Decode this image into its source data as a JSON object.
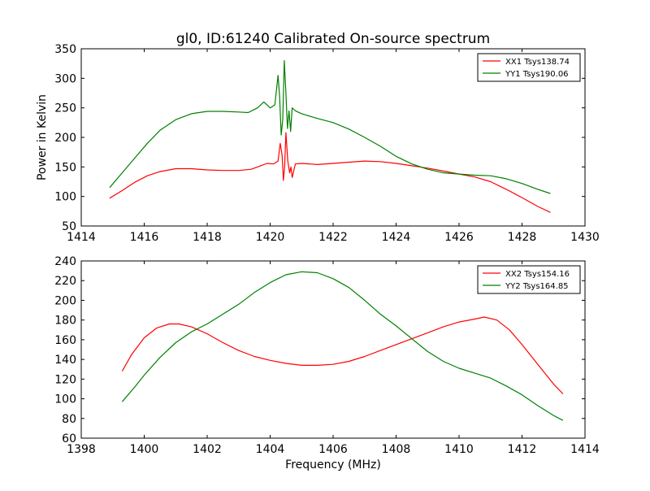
{
  "figure": {
    "title": "gl0, ID:61240 Calibrated On-source spectrum",
    "ylabel": "Power in Kelvin",
    "xlabel": "Frequency (MHz)"
  },
  "colors": {
    "red": "#ff0000",
    "green": "#008000"
  },
  "chart_data": [
    {
      "type": "line",
      "title": "gl0, ID:61240 Calibrated On-source spectrum",
      "ylabel": "Power in Kelvin",
      "xlabel": "",
      "xlim": [
        1414,
        1430
      ],
      "ylim": [
        50,
        350
      ],
      "xticks": [
        1414,
        1416,
        1418,
        1420,
        1422,
        1424,
        1426,
        1428,
        1430
      ],
      "yticks": [
        50,
        100,
        150,
        200,
        250,
        300,
        350
      ],
      "legend": "top-right",
      "series": [
        {
          "name": "XX1 Tsys138.74",
          "color": "#ff0000",
          "x": [
            1414.9,
            1415.3,
            1415.7,
            1416.1,
            1416.5,
            1417.0,
            1417.5,
            1418.0,
            1418.5,
            1419.0,
            1419.4,
            1419.7,
            1419.9,
            1420.1,
            1420.25,
            1420.32,
            1420.38,
            1420.42,
            1420.46,
            1420.5,
            1420.56,
            1420.62,
            1420.66,
            1420.7,
            1420.8,
            1421.0,
            1421.5,
            1422.0,
            1422.5,
            1423.0,
            1423.5,
            1424.0,
            1424.5,
            1425.0,
            1425.5,
            1426.0,
            1426.5,
            1427.0,
            1427.5,
            1428.0,
            1428.5,
            1428.9
          ],
          "values": [
            97,
            110,
            124,
            135,
            142,
            147,
            147,
            145,
            144,
            144,
            146,
            152,
            156,
            155,
            160,
            190,
            170,
            127,
            150,
            208,
            160,
            140,
            150,
            132,
            155,
            156,
            154,
            156,
            158,
            160,
            159,
            156,
            152,
            148,
            143,
            138,
            133,
            125,
            112,
            98,
            83,
            73
          ]
        },
        {
          "name": "YY1 Tsys190.06",
          "color": "#008000",
          "x": [
            1414.9,
            1415.3,
            1415.7,
            1416.1,
            1416.5,
            1417.0,
            1417.5,
            1418.0,
            1418.5,
            1419.0,
            1419.3,
            1419.6,
            1419.8,
            1420.0,
            1420.15,
            1420.25,
            1420.3,
            1420.35,
            1420.4,
            1420.45,
            1420.5,
            1420.55,
            1420.6,
            1420.65,
            1420.7,
            1420.8,
            1421.0,
            1421.5,
            1422.0,
            1422.5,
            1423.0,
            1423.5,
            1424.0,
            1424.5,
            1425.0,
            1425.5,
            1426.0,
            1426.5,
            1427.0,
            1427.5,
            1428.0,
            1428.5,
            1428.9
          ],
          "values": [
            115,
            140,
            165,
            190,
            212,
            230,
            240,
            244,
            244,
            243,
            242,
            250,
            260,
            250,
            255,
            305,
            270,
            204,
            230,
            330,
            275,
            215,
            245,
            210,
            250,
            245,
            240,
            232,
            225,
            214,
            200,
            185,
            168,
            155,
            146,
            140,
            138,
            136,
            135,
            130,
            122,
            112,
            105
          ]
        }
      ]
    },
    {
      "type": "line",
      "title": "",
      "xlabel": "Frequency (MHz)",
      "ylabel": "",
      "xlim": [
        1398,
        1414
      ],
      "ylim": [
        60,
        240
      ],
      "xticks": [
        1398,
        1400,
        1402,
        1404,
        1406,
        1408,
        1410,
        1412,
        1414
      ],
      "yticks": [
        60,
        80,
        100,
        120,
        140,
        160,
        180,
        200,
        220,
        240
      ],
      "legend": "top-right",
      "series": [
        {
          "name": "XX2 Tsys154.16",
          "color": "#ff0000",
          "x": [
            1399.3,
            1399.6,
            1400.0,
            1400.4,
            1400.8,
            1401.1,
            1401.5,
            1402.0,
            1402.5,
            1403.0,
            1403.5,
            1404.0,
            1404.5,
            1405.0,
            1405.5,
            1406.0,
            1406.5,
            1407.0,
            1407.5,
            1408.0,
            1408.5,
            1409.0,
            1409.5,
            1410.0,
            1410.5,
            1410.8,
            1411.2,
            1411.6,
            1412.0,
            1412.5,
            1413.0,
            1413.3
          ],
          "values": [
            128,
            145,
            162,
            172,
            176,
            176,
            173,
            166,
            157,
            149,
            143,
            139,
            136,
            134,
            134,
            135,
            138,
            143,
            149,
            155,
            161,
            167,
            173,
            178,
            181,
            183,
            180,
            170,
            155,
            135,
            115,
            105
          ]
        },
        {
          "name": "YY2 Tsys164.85",
          "color": "#008000",
          "x": [
            1399.3,
            1399.7,
            1400.0,
            1400.5,
            1401.0,
            1401.5,
            1402.0,
            1402.5,
            1403.0,
            1403.5,
            1404.0,
            1404.5,
            1405.0,
            1405.5,
            1406.0,
            1406.5,
            1407.0,
            1407.5,
            1408.0,
            1408.5,
            1409.0,
            1409.5,
            1410.0,
            1410.5,
            1411.0,
            1411.5,
            1412.0,
            1412.5,
            1413.0,
            1413.3
          ],
          "values": [
            97,
            112,
            124,
            142,
            157,
            168,
            176,
            186,
            196,
            208,
            218,
            226,
            229,
            228,
            222,
            213,
            200,
            186,
            174,
            161,
            148,
            138,
            131,
            126,
            121,
            113,
            104,
            93,
            83,
            78
          ]
        }
      ]
    }
  ]
}
